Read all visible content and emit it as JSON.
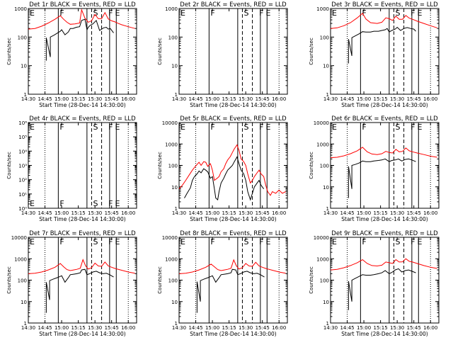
{
  "figure": {
    "xlabel": "Start Time (28-Dec-14 14:30:00)",
    "ylabel": "Counts/sec",
    "x_tick_labels": [
      "14:30",
      "14:45",
      "15:00",
      "15:15",
      "15:30",
      "15:45",
      "16:00"
    ],
    "colors": {
      "events": "#000000",
      "lld": "#ff0000",
      "frame": "#000000"
    }
  },
  "chart_data": [
    {
      "type": "line",
      "title": "Det 1r BLACK = Events, RED = LLD",
      "xlabel": "Start Time (28-Dec-14 14:30:00)",
      "ylabel": "Counts/sec",
      "yscale": "log",
      "ylim": [
        1,
        1000
      ],
      "y_tick_labels": [
        "1",
        "10",
        "100",
        "1000"
      ],
      "markers": [
        "E",
        "F",
        "S",
        "F",
        "E"
      ],
      "series": [
        {
          "name": "Events",
          "x": [
            14.77,
            14.77,
            14.83,
            14.83,
            14.88,
            14.93,
            14.98,
            15.0,
            15.05,
            15.1,
            15.13,
            15.17,
            15.22,
            15.27,
            15.3,
            15.35,
            15.38,
            15.4,
            15.43,
            15.47,
            15.52,
            15.57,
            15.63,
            15.67,
            15.7,
            15.73,
            15.78
          ],
          "y": [
            15,
            95,
            20,
            100,
            115,
            135,
            160,
            180,
            120,
            150,
            200,
            200,
            220,
            230,
            380,
            420,
            180,
            220,
            260,
            290,
            380,
            170,
            210,
            220,
            190,
            200,
            140
          ]
        },
        {
          "name": "LLD",
          "x": [
            14.5,
            14.6,
            14.7,
            14.8,
            14.9,
            14.98,
            15.03,
            15.08,
            15.13,
            15.2,
            15.27,
            15.3,
            15.35,
            15.4,
            15.45,
            15.5,
            15.55,
            15.6,
            15.65,
            15.7,
            15.75,
            15.8,
            15.85,
            15.9,
            16.0,
            16.1
          ],
          "y": [
            190,
            200,
            240,
            310,
            420,
            560,
            420,
            330,
            280,
            290,
            310,
            900,
            460,
            330,
            370,
            620,
            440,
            440,
            720,
            430,
            370,
            340,
            300,
            270,
            230,
            200
          ]
        }
      ]
    },
    {
      "type": "line",
      "title": "Det 2r BLACK = Events, RED = LLD",
      "xlabel": "Start Time (28-Dec-14 14:30:00)",
      "ylabel": "Counts/sec",
      "yscale": "log",
      "ylim": [
        1,
        1000
      ],
      "y_tick_labels": [
        "1",
        "10",
        "100",
        "1000"
      ],
      "markers": [
        "E",
        "F",
        "S",
        "F",
        "E"
      ],
      "series": []
    },
    {
      "type": "line",
      "title": "Det 3r BLACK = Events, RED = LLD",
      "xlabel": "Start Time (28-Dec-14 14:30:00)",
      "ylabel": "Counts/sec",
      "yscale": "log",
      "ylim": [
        1,
        1000
      ],
      "y_tick_labels": [
        "1",
        "10",
        "100",
        "1000"
      ],
      "markers": [
        "E",
        "F",
        "S",
        "F",
        "E"
      ],
      "series": [
        {
          "name": "Events",
          "x": [
            14.77,
            14.77,
            14.82,
            14.82,
            14.87,
            14.93,
            14.98,
            15.03,
            15.1,
            15.15,
            15.22,
            15.27,
            15.32,
            15.35,
            15.38,
            15.42,
            15.47,
            15.5,
            15.55,
            15.6,
            15.65,
            15.7,
            15.75,
            15.78
          ],
          "y": [
            12,
            85,
            22,
            95,
            110,
            130,
            155,
            150,
            150,
            160,
            160,
            170,
            180,
            200,
            150,
            170,
            190,
            220,
            170,
            200,
            215,
            200,
            190,
            160
          ]
        },
        {
          "name": "LLD",
          "x": [
            14.5,
            14.6,
            14.7,
            14.8,
            14.9,
            14.98,
            15.03,
            15.1,
            15.2,
            15.27,
            15.33,
            15.38,
            15.43,
            15.48,
            15.53,
            15.58,
            15.63,
            15.68,
            15.73,
            15.8,
            15.9,
            16.0,
            16.1
          ],
          "y": [
            200,
            210,
            250,
            320,
            470,
            680,
            430,
            320,
            300,
            330,
            470,
            440,
            380,
            540,
            420,
            420,
            570,
            460,
            420,
            360,
            300,
            250,
            210
          ]
        }
      ]
    },
    {
      "type": "line",
      "title": "Det 4r BLACK = Events, RED = LLD",
      "xlabel": "Start Time (28-Dec-14 14:30:00)",
      "ylabel": "Counts/sec",
      "yscale": "log",
      "ylim": [
        1,
        1000000
      ],
      "y_tick_labels": [
        "10⁰",
        "10¹",
        "10²",
        "10³",
        "10⁴",
        "10⁵",
        "10⁶"
      ],
      "markers": [
        "E",
        "F",
        "S",
        "F",
        "E"
      ],
      "series": []
    },
    {
      "type": "line",
      "title": "Det 5r BLACK = Events, RED = LLD",
      "xlabel": "Start Time (28-Dec-14 14:30:00)",
      "ylabel": "Counts/sec",
      "yscale": "log",
      "ylim": [
        1,
        10000
      ],
      "y_tick_labels": [
        "1",
        "10",
        "100",
        "1000",
        "10000"
      ],
      "markers": [
        "E",
        "F",
        "S",
        "F",
        "E"
      ],
      "series": [
        {
          "name": "Events",
          "x": [
            14.58,
            14.62,
            14.67,
            14.7,
            14.73,
            14.77,
            14.8,
            14.83,
            14.87,
            14.9,
            14.93,
            14.97,
            15.0,
            15.03,
            15.05,
            15.08,
            15.1,
            15.13,
            15.17,
            15.2,
            15.23,
            15.27,
            15.3,
            15.33,
            15.37,
            15.4,
            15.43,
            15.47,
            15.5,
            15.53,
            15.57,
            15.6,
            15.63,
            15.67,
            15.7,
            15.73,
            15.77
          ],
          "y": [
            3,
            5,
            9,
            20,
            30,
            40,
            55,
            45,
            70,
            60,
            50,
            25,
            30,
            8,
            3,
            2.5,
            6,
            15,
            25,
            40,
            60,
            80,
            100,
            150,
            250,
            120,
            60,
            40,
            20,
            6,
            2.5,
            5,
            10,
            15,
            20,
            12,
            8
          ]
        },
        {
          "name": "LLD",
          "x": [
            14.5,
            14.55,
            14.6,
            14.65,
            14.7,
            14.73,
            14.77,
            14.8,
            14.83,
            14.87,
            14.9,
            14.93,
            14.97,
            15.0,
            15.03,
            15.07,
            15.1,
            15.13,
            15.17,
            15.2,
            15.23,
            15.27,
            15.3,
            15.33,
            15.37,
            15.4,
            15.43,
            15.47,
            15.5,
            15.53,
            15.57,
            15.6,
            15.63,
            15.67,
            15.7,
            15.73,
            15.77,
            15.8,
            15.83,
            15.87,
            15.9,
            15.95,
            16.0,
            16.05,
            16.1
          ],
          "y": [
            8,
            12,
            20,
            35,
            60,
            80,
            110,
            140,
            100,
            150,
            140,
            90,
            120,
            60,
            20,
            25,
            30,
            50,
            70,
            120,
            180,
            260,
            400,
            600,
            900,
            500,
            200,
            150,
            100,
            40,
            15,
            20,
            30,
            45,
            60,
            40,
            30,
            12,
            6,
            4,
            6,
            5,
            7,
            5,
            6
          ]
        }
      ]
    },
    {
      "type": "line",
      "title": "Det 6r BLACK = Events, RED = LLD",
      "xlabel": "Start Time (28-Dec-14 14:30:00)",
      "ylabel": "Counts/sec",
      "yscale": "log",
      "ylim": [
        1,
        10000
      ],
      "y_tick_labels": [
        "1",
        "10",
        "100",
        "1000",
        "10000"
      ],
      "markers": [
        "E",
        "F",
        "S",
        "F",
        "E"
      ],
      "series": [
        {
          "name": "Events",
          "x": [
            14.77,
            14.77,
            14.82,
            14.82,
            14.87,
            14.93,
            14.98,
            15.03,
            15.1,
            15.15,
            15.22,
            15.27,
            15.32,
            15.38,
            15.42,
            15.47,
            15.52,
            15.57,
            15.62,
            15.67,
            15.72,
            15.78
          ],
          "y": [
            3,
            90,
            8,
            100,
            110,
            130,
            160,
            150,
            150,
            160,
            170,
            180,
            200,
            150,
            170,
            180,
            200,
            160,
            190,
            200,
            180,
            150
          ]
        },
        {
          "name": "LLD",
          "x": [
            14.5,
            14.6,
            14.7,
            14.8,
            14.9,
            14.98,
            15.05,
            15.12,
            15.2,
            15.27,
            15.33,
            15.38,
            15.43,
            15.48,
            15.53,
            15.58,
            15.63,
            15.68,
            15.73,
            15.8,
            15.9,
            16.0,
            16.1
          ],
          "y": [
            230,
            240,
            280,
            350,
            480,
            700,
            430,
            340,
            320,
            350,
            450,
            400,
            380,
            560,
            430,
            450,
            650,
            480,
            430,
            380,
            320,
            270,
            240
          ]
        }
      ]
    },
    {
      "type": "line",
      "title": "Det 7r BLACK = Events, RED = LLD",
      "xlabel": "Start Time (28-Dec-14 14:30:00)",
      "ylabel": "Counts/sec",
      "yscale": "log",
      "ylim": [
        1,
        10000
      ],
      "y_tick_labels": [
        "1",
        "10",
        "100",
        "1000",
        "10000"
      ],
      "markers": [
        "E",
        "F",
        "S",
        "F",
        "E"
      ],
      "series": [
        {
          "name": "Events",
          "x": [
            14.77,
            14.77,
            14.82,
            14.82,
            14.87,
            14.93,
            14.98,
            15.0,
            15.05,
            15.1,
            15.13,
            15.18,
            15.23,
            15.28,
            15.3,
            15.35,
            15.38,
            15.42,
            15.47,
            15.52,
            15.57,
            15.62,
            15.67,
            15.72,
            15.78
          ],
          "y": [
            3,
            80,
            12,
            95,
            110,
            130,
            150,
            160,
            80,
            130,
            180,
            190,
            200,
            220,
            300,
            320,
            180,
            200,
            240,
            260,
            220,
            200,
            210,
            180,
            140
          ]
        },
        {
          "name": "LLD",
          "x": [
            14.5,
            14.6,
            14.7,
            14.8,
            14.9,
            14.98,
            15.03,
            15.08,
            15.13,
            15.18,
            15.23,
            15.28,
            15.32,
            15.36,
            15.4,
            15.45,
            15.5,
            15.55,
            15.6,
            15.65,
            15.7,
            15.75,
            15.8,
            15.9,
            16.0,
            16.1
          ],
          "y": [
            200,
            210,
            240,
            300,
            400,
            600,
            420,
            310,
            280,
            300,
            320,
            360,
            900,
            460,
            330,
            380,
            620,
            460,
            440,
            700,
            460,
            400,
            350,
            290,
            240,
            210
          ]
        }
      ]
    },
    {
      "type": "line",
      "title": "Det 8r BLACK = Events, RED = LLD",
      "xlabel": "Start Time (28-Dec-14 14:30:00)",
      "ylabel": "Counts/sec",
      "yscale": "log",
      "ylim": [
        1,
        10000
      ],
      "y_tick_labels": [
        "1",
        "10",
        "100",
        "1000",
        "10000"
      ],
      "markers": [
        "E",
        "F",
        "S",
        "F",
        "E"
      ],
      "series": [
        {
          "name": "Events",
          "x": [
            14.77,
            14.77,
            14.82,
            14.82,
            14.87,
            14.93,
            14.98,
            15.0,
            15.05,
            15.1,
            15.13,
            15.18,
            15.23,
            15.28,
            15.3,
            15.35,
            15.38,
            15.42,
            15.47,
            15.52,
            15.57,
            15.62,
            15.67,
            15.72,
            15.78
          ],
          "y": [
            3,
            85,
            10,
            95,
            110,
            130,
            150,
            160,
            80,
            130,
            180,
            190,
            200,
            220,
            320,
            300,
            180,
            200,
            240,
            260,
            220,
            200,
            210,
            180,
            140
          ]
        },
        {
          "name": "LLD",
          "x": [
            14.5,
            14.6,
            14.7,
            14.8,
            14.9,
            14.98,
            15.03,
            15.08,
            15.13,
            15.18,
            15.23,
            15.28,
            15.32,
            15.36,
            15.4,
            15.45,
            15.5,
            15.55,
            15.6,
            15.65,
            15.7,
            15.75,
            15.8,
            15.9,
            16.0,
            16.1
          ],
          "y": [
            200,
            210,
            240,
            300,
            400,
            560,
            420,
            310,
            280,
            300,
            320,
            360,
            880,
            460,
            330,
            380,
            600,
            460,
            440,
            680,
            460,
            400,
            350,
            290,
            240,
            210
          ]
        }
      ]
    },
    {
      "type": "line",
      "title": "Det 9r BLACK = Events, RED = LLD",
      "xlabel": "Start Time (28-Dec-14 14:30:00)",
      "ylabel": "Counts/sec",
      "yscale": "log",
      "ylim": [
        1,
        10000
      ],
      "y_tick_labels": [
        "1",
        "10",
        "100",
        "1000",
        "10000"
      ],
      "markers": [
        "E",
        "F",
        "S",
        "F",
        "E"
      ],
      "series": [
        {
          "name": "Events",
          "x": [
            14.77,
            14.77,
            14.82,
            14.82,
            14.87,
            14.93,
            14.98,
            15.03,
            15.1,
            15.15,
            15.22,
            15.27,
            15.32,
            15.38,
            15.42,
            15.47,
            15.52,
            15.57,
            15.62,
            15.67,
            15.72,
            15.78
          ],
          "y": [
            4,
            90,
            10,
            100,
            120,
            150,
            180,
            170,
            170,
            180,
            200,
            220,
            280,
            200,
            230,
            300,
            340,
            240,
            280,
            300,
            260,
            220
          ]
        },
        {
          "name": "LLD",
          "x": [
            14.5,
            14.6,
            14.7,
            14.8,
            14.9,
            14.98,
            15.05,
            15.12,
            15.2,
            15.27,
            15.33,
            15.38,
            15.43,
            15.48,
            15.53,
            15.58,
            15.63,
            15.68,
            15.73,
            15.8,
            15.9,
            16.0,
            16.1
          ],
          "y": [
            300,
            320,
            380,
            480,
            650,
            900,
            600,
            480,
            460,
            500,
            700,
            650,
            600,
            900,
            700,
            720,
            1000,
            760,
            700,
            600,
            480,
            400,
            350
          ]
        }
      ]
    }
  ]
}
